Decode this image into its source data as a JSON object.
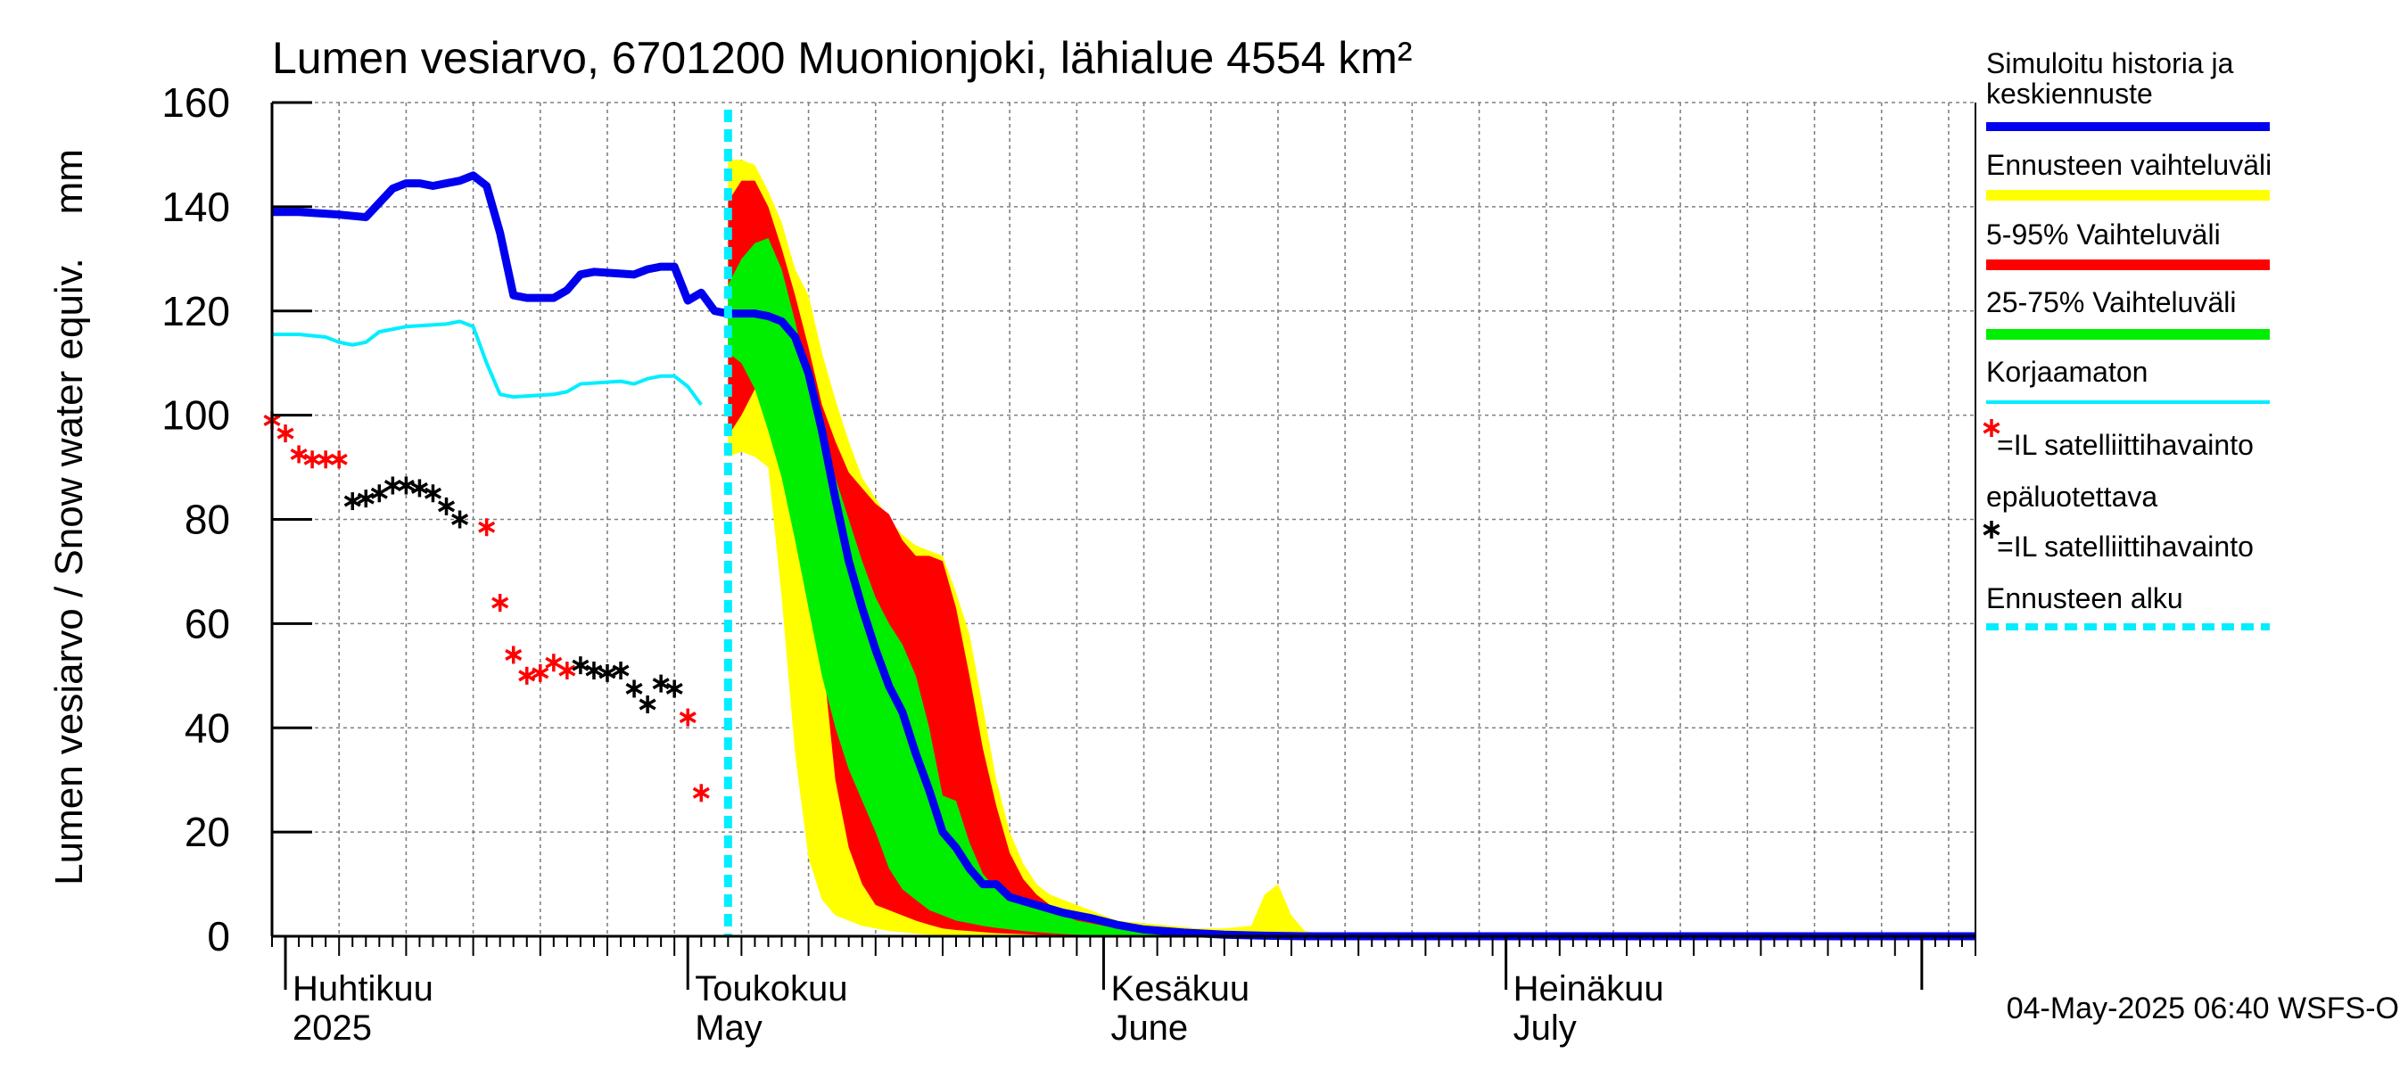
{
  "chart_data": {
    "type": "area",
    "title": "Lumen vesiarvo, 6701200 Muonionjoki, lähialue 4554 km²",
    "ylabel": "Lumen vesiarvo / Snow water equiv.    mm",
    "ylim": [
      0,
      160
    ],
    "yticks": [
      0,
      20,
      40,
      60,
      80,
      100,
      120,
      140,
      160
    ],
    "xlim": [
      "2025-03-31",
      "2025-08-05"
    ],
    "grid": true,
    "legend_position": "right",
    "month_labels": [
      {
        "date": "2025-04-01",
        "fi": "Huhtikuu",
        "en": "2025"
      },
      {
        "date": "2025-05-01",
        "fi": "Toukokuu",
        "en": "May"
      },
      {
        "date": "2025-06-01",
        "fi": "Kesäkuu",
        "en": "June"
      },
      {
        "date": "2025-07-01",
        "fi": "Heinäkuu",
        "en": "July"
      }
    ],
    "forecast_start": "2025-05-04",
    "footer": "04-May-2025 06:40 WSFS-O",
    "colors": {
      "simulated": "#0000ee",
      "range_total": "#ffff00",
      "range_5_95": "#ff0000",
      "range_25_75": "#00ee00",
      "uncorrected": "#00eeff",
      "obs_reliable": "#ff0000",
      "obs_unreliable": "#000000",
      "forecast_start": "#00eeff",
      "grid": "#808080"
    },
    "legend": [
      {
        "key": "simulated",
        "label": "Simuloitu historia ja keskiennuste",
        "kind": "line"
      },
      {
        "key": "range_total",
        "label": "Ennusteen vaihteluväli",
        "kind": "band"
      },
      {
        "key": "range_5_95",
        "label": "5-95% Vaihteluväli",
        "kind": "band"
      },
      {
        "key": "range_25_75",
        "label": "25-75% Vaihteluväli",
        "kind": "band"
      },
      {
        "key": "uncorrected",
        "label": "Korjaamaton",
        "kind": "thin"
      },
      {
        "key": "obs_reliable",
        "label": "=IL satelliittihavainto",
        "kind": "star"
      },
      {
        "key": "obs_unreliable",
        "label": "epäluotettava",
        "label2": "=IL satelliittihavainto",
        "kind": "star"
      },
      {
        "key": "forecast_start",
        "label": "Ennusteen alku",
        "kind": "dash"
      }
    ],
    "series": {
      "simulated_history": [
        [
          "2025-03-31",
          139
        ],
        [
          "2025-04-02",
          139
        ],
        [
          "2025-04-05",
          138.5
        ],
        [
          "2025-04-07",
          138
        ],
        [
          "2025-04-09",
          143.5
        ],
        [
          "2025-04-10",
          144.5
        ],
        [
          "2025-04-11",
          144.5
        ],
        [
          "2025-04-12",
          144
        ],
        [
          "2025-04-13",
          144.5
        ],
        [
          "2025-04-14",
          145
        ],
        [
          "2025-04-15",
          146
        ],
        [
          "2025-04-16",
          144
        ],
        [
          "2025-04-17",
          135
        ],
        [
          "2025-04-18",
          123
        ],
        [
          "2025-04-19",
          122.5
        ],
        [
          "2025-04-21",
          122.5
        ],
        [
          "2025-04-22",
          124
        ],
        [
          "2025-04-23",
          127
        ],
        [
          "2025-04-24",
          127.5
        ],
        [
          "2025-04-27",
          127
        ],
        [
          "2025-04-28",
          128
        ],
        [
          "2025-04-29",
          128.5
        ],
        [
          "2025-04-30",
          128.5
        ],
        [
          "2025-05-01",
          122
        ],
        [
          "2025-05-02",
          123.5
        ],
        [
          "2025-05-03",
          120
        ],
        [
          "2025-05-04",
          119.5
        ]
      ],
      "simulated_forecast": [
        [
          "2025-05-04",
          119.5
        ],
        [
          "2025-05-06",
          119.5
        ],
        [
          "2025-05-07",
          119
        ],
        [
          "2025-05-08",
          118
        ],
        [
          "2025-05-09",
          115
        ],
        [
          "2025-05-10",
          108
        ],
        [
          "2025-05-11",
          97
        ],
        [
          "2025-05-12",
          84
        ],
        [
          "2025-05-13",
          72
        ],
        [
          "2025-05-14",
          63
        ],
        [
          "2025-05-15",
          55
        ],
        [
          "2025-05-16",
          48
        ],
        [
          "2025-05-17",
          43
        ],
        [
          "2025-05-18",
          35
        ],
        [
          "2025-05-19",
          28
        ],
        [
          "2025-05-20",
          20
        ],
        [
          "2025-05-21",
          17
        ],
        [
          "2025-05-22",
          13
        ],
        [
          "2025-05-23",
          10
        ],
        [
          "2025-05-24",
          10
        ],
        [
          "2025-05-25",
          7.5
        ],
        [
          "2025-05-27",
          6
        ],
        [
          "2025-05-29",
          4.5
        ],
        [
          "2025-05-31",
          3.5
        ],
        [
          "2025-06-02",
          2.2
        ],
        [
          "2025-06-04",
          1.3
        ],
        [
          "2025-06-07",
          0.7
        ],
        [
          "2025-06-10",
          0.3
        ],
        [
          "2025-06-13",
          0.1
        ],
        [
          "2025-06-16",
          0
        ],
        [
          "2025-08-05",
          0
        ]
      ],
      "uncorrected": [
        [
          "2025-03-31",
          115.5
        ],
        [
          "2025-04-02",
          115.5
        ],
        [
          "2025-04-04",
          115
        ],
        [
          "2025-04-05",
          114
        ],
        [
          "2025-04-06",
          113.5
        ],
        [
          "2025-04-07",
          114
        ],
        [
          "2025-04-08",
          116
        ],
        [
          "2025-04-10",
          117
        ],
        [
          "2025-04-13",
          117.5
        ],
        [
          "2025-04-14",
          118
        ],
        [
          "2025-04-15",
          117
        ],
        [
          "2025-04-16",
          110
        ],
        [
          "2025-04-17",
          104
        ],
        [
          "2025-04-18",
          103.5
        ],
        [
          "2025-04-21",
          104
        ],
        [
          "2025-04-22",
          104.5
        ],
        [
          "2025-04-23",
          106
        ],
        [
          "2025-04-26",
          106.5
        ],
        [
          "2025-04-27",
          106
        ],
        [
          "2025-04-28",
          107
        ],
        [
          "2025-04-29",
          107.5
        ],
        [
          "2025-04-30",
          107.5
        ],
        [
          "2025-05-01",
          105.5
        ],
        [
          "2025-05-02",
          102
        ]
      ],
      "band_total": {
        "x": [
          "2025-05-04",
          "2025-05-05",
          "2025-05-06",
          "2025-05-07",
          "2025-05-08",
          "2025-05-09",
          "2025-05-10",
          "2025-05-11",
          "2025-05-12",
          "2025-05-13",
          "2025-05-14",
          "2025-05-15",
          "2025-05-16",
          "2025-05-17",
          "2025-05-18",
          "2025-05-19",
          "2025-05-20",
          "2025-05-21",
          "2025-05-22",
          "2025-05-23",
          "2025-05-24",
          "2025-05-25",
          "2025-05-26",
          "2025-05-27",
          "2025-05-28",
          "2025-05-29",
          "2025-05-30",
          "2025-05-31",
          "2025-06-01",
          "2025-06-02",
          "2025-06-04",
          "2025-06-06",
          "2025-06-08",
          "2025-06-10",
          "2025-06-12",
          "2025-06-13",
          "2025-06-14",
          "2025-06-15",
          "2025-06-16",
          "2025-06-18",
          "2025-06-20"
        ],
        "upper": [
          149,
          149,
          148,
          143,
          137,
          128,
          123,
          112,
          103,
          95,
          88,
          84,
          80,
          77,
          75,
          74,
          73,
          66,
          58,
          44,
          30,
          20,
          14,
          10,
          8,
          7,
          6,
          5,
          4,
          3,
          2.5,
          2,
          1.5,
          1.5,
          2,
          8,
          10,
          4,
          1,
          0.3,
          0
        ],
        "lower": [
          92,
          93,
          92,
          90,
          65,
          35,
          15,
          7,
          4,
          3,
          2,
          1.5,
          1,
          0.8,
          0.5,
          0.3,
          0.2,
          0.1,
          0,
          0,
          0,
          0,
          0,
          0,
          0,
          0,
          0,
          0,
          0,
          0,
          0,
          0,
          0,
          0,
          0,
          0,
          0,
          0,
          0,
          0,
          0
        ]
      },
      "band_5_95": {
        "x": [
          "2025-05-04",
          "2025-05-05",
          "2025-05-06",
          "2025-05-07",
          "2025-05-08",
          "2025-05-09",
          "2025-05-10",
          "2025-05-11",
          "2025-05-12",
          "2025-05-13",
          "2025-05-14",
          "2025-05-15",
          "2025-05-16",
          "2025-05-17",
          "2025-05-18",
          "2025-05-19",
          "2025-05-20",
          "2025-05-21",
          "2025-05-22",
          "2025-05-23",
          "2025-05-24",
          "2025-05-25",
          "2025-05-26",
          "2025-05-27",
          "2025-05-28",
          "2025-05-29",
          "2025-05-30",
          "2025-05-31",
          "2025-06-01",
          "2025-06-02",
          "2025-06-04",
          "2025-06-06",
          "2025-06-08",
          "2025-06-10",
          "2025-06-12",
          "2025-06-14"
        ],
        "upper": [
          141,
          145,
          145,
          140,
          132,
          123,
          113,
          102,
          95,
          89,
          86,
          83,
          81,
          76,
          73,
          73,
          72,
          63,
          50,
          36,
          25,
          16,
          11,
          8,
          6,
          5,
          4,
          3.5,
          3,
          2,
          1.3,
          0.8,
          0.4,
          0.2,
          0.1,
          0
        ],
        "lower": [
          96,
          100,
          105,
          105,
          103,
          96,
          80,
          55,
          30,
          17,
          10,
          6,
          5,
          4,
          3,
          2.2,
          1.5,
          1.2,
          1,
          0.8,
          0.6,
          0.5,
          0.4,
          0.3,
          0.2,
          0.15,
          0.1,
          0.05,
          0,
          0,
          0,
          0,
          0,
          0,
          0,
          0
        ]
      },
      "band_25_75": {
        "x": [
          "2025-05-04",
          "2025-05-05",
          "2025-05-06",
          "2025-05-07",
          "2025-05-08",
          "2025-05-09",
          "2025-05-10",
          "2025-05-11",
          "2025-05-12",
          "2025-05-13",
          "2025-05-14",
          "2025-05-15",
          "2025-05-16",
          "2025-05-17",
          "2025-05-18",
          "2025-05-19",
          "2025-05-20",
          "2025-05-21",
          "2025-05-22",
          "2025-05-23",
          "2025-05-24",
          "2025-05-25",
          "2025-05-26",
          "2025-05-27",
          "2025-05-28",
          "2025-05-29",
          "2025-05-30",
          "2025-05-31",
          "2025-06-02",
          "2025-06-04",
          "2025-06-06",
          "2025-06-08",
          "2025-06-10"
        ],
        "upper": [
          125,
          130,
          133,
          134,
          128,
          118,
          107,
          96,
          88,
          80,
          72,
          65,
          60,
          56,
          50,
          40,
          27,
          26,
          18,
          12,
          9,
          8,
          7,
          6,
          5,
          4,
          3,
          2.5,
          1.5,
          0.8,
          0.4,
          0.2,
          0
        ],
        "lower": [
          112,
          110,
          105,
          97,
          88,
          76,
          63,
          50,
          40,
          32,
          26,
          20,
          13,
          9,
          7,
          5,
          4,
          3,
          2.5,
          2,
          1.6,
          1.3,
          1,
          0.8,
          0.6,
          0.4,
          0.3,
          0.2,
          0.1,
          0,
          0,
          0,
          0
        ]
      },
      "obs_reliable": [
        [
          "2025-03-31",
          99
        ],
        [
          "2025-04-01",
          96.5
        ],
        [
          "2025-04-02",
          92.5
        ],
        [
          "2025-04-03",
          91.5
        ],
        [
          "2025-04-04",
          91.5
        ],
        [
          "2025-04-05",
          91.5
        ],
        [
          "2025-04-16",
          78.5
        ],
        [
          "2025-04-17",
          64
        ],
        [
          "2025-04-18",
          54
        ],
        [
          "2025-04-19",
          50
        ],
        [
          "2025-04-20",
          50.5
        ],
        [
          "2025-04-21",
          52.5
        ],
        [
          "2025-04-22",
          51
        ],
        [
          "2025-05-01",
          42
        ],
        [
          "2025-05-02",
          27.5
        ]
      ],
      "obs_unreliable": [
        [
          "2025-04-06",
          83.5
        ],
        [
          "2025-04-07",
          84
        ],
        [
          "2025-04-08",
          85
        ],
        [
          "2025-04-09",
          86.5
        ],
        [
          "2025-04-10",
          86.5
        ],
        [
          "2025-04-11",
          86
        ],
        [
          "2025-04-12",
          85
        ],
        [
          "2025-04-13",
          82.5
        ],
        [
          "2025-04-14",
          80
        ],
        [
          "2025-04-23",
          52
        ],
        [
          "2025-04-24",
          51
        ],
        [
          "2025-04-25",
          50.5
        ],
        [
          "2025-04-26",
          51
        ],
        [
          "2025-04-27",
          47.5
        ],
        [
          "2025-04-28",
          44.5
        ],
        [
          "2025-04-29",
          48.5
        ],
        [
          "2025-04-30",
          47.5
        ]
      ]
    }
  }
}
